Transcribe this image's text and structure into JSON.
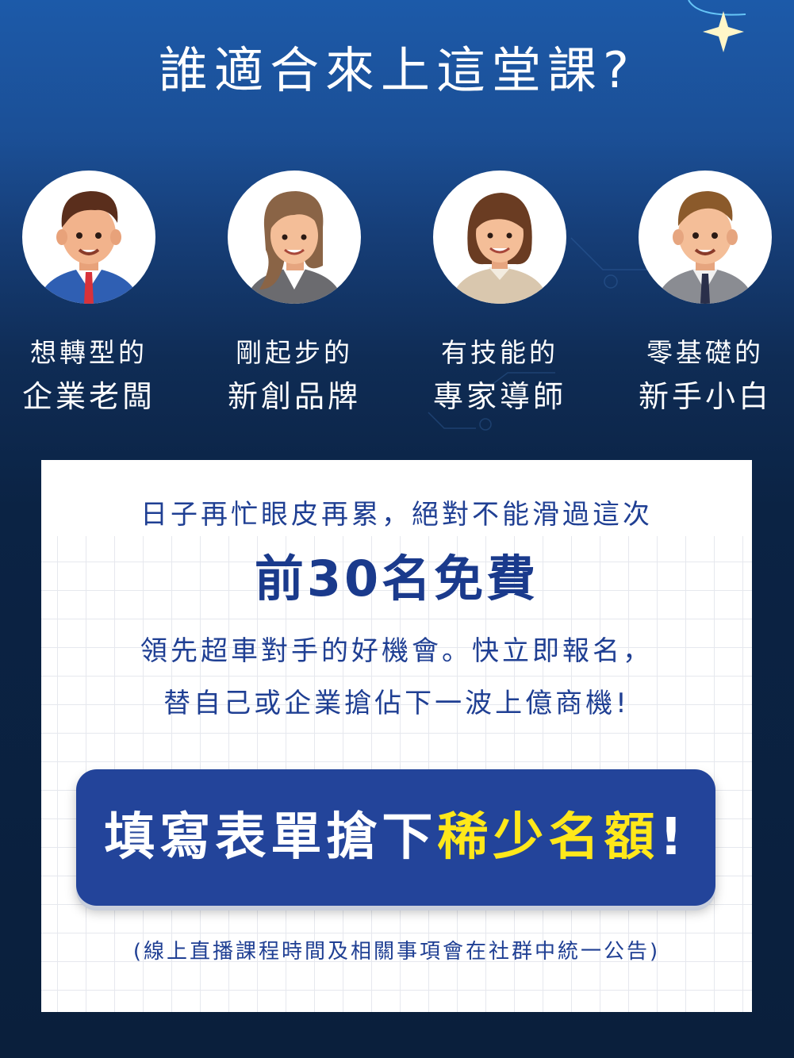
{
  "title": "誰適合來上這堂課?",
  "personas": [
    {
      "line1": "想轉型的",
      "line2": "企業老闆",
      "icon": "businessman-avatar-icon"
    },
    {
      "line1": "剛起步的",
      "line2": "新創品牌",
      "icon": "businesswoman-avatar-icon"
    },
    {
      "line1": "有技能的",
      "line2": "專家導師",
      "icon": "woman-mentor-avatar-icon"
    },
    {
      "line1": "零基礎的",
      "line2": "新手小白",
      "icon": "young-man-avatar-icon"
    }
  ],
  "card": {
    "tagline": "日子再忙眼皮再累，絕對不能滑過這次",
    "headline": "前30名免費",
    "desc_line1": "領先超車對手的好機會。快立即報名，",
    "desc_line2": "替自己或企業搶佔下一波上億商機!",
    "cta_white": "填寫表單搶下",
    "cta_yellow": "稀少名額",
    "cta_exclaim": "!",
    "note": "(線上直播課程時間及相關事項會在社群中統一公告)"
  },
  "colors": {
    "accent_blue": "#23449a",
    "text_blue": "#1f3f93",
    "highlight_yellow": "#ffe81a",
    "background_top": "#1c5aa9",
    "background_bottom": "#0a1f3c"
  }
}
